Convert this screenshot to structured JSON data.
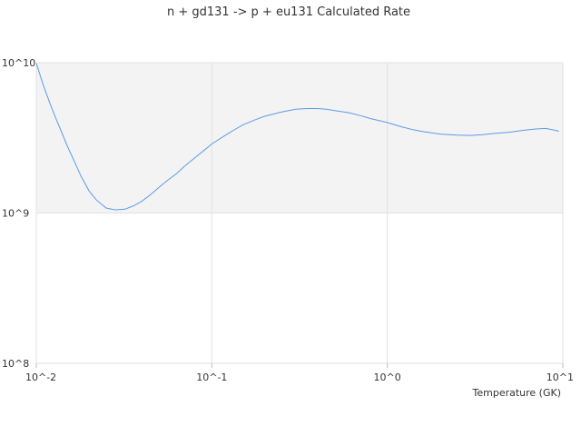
{
  "chart_data": {
    "type": "line",
    "title": "n + gd131 -> p + eu131 Calculated Rate",
    "xlabel": "Temperature (GK)",
    "ylabel": "",
    "x_scale": "log",
    "y_scale": "log",
    "xlim": [
      0.01,
      10
    ],
    "ylim": [
      100000000,
      10000000000
    ],
    "x_ticks": [
      {
        "value": 0.01,
        "label": "10^-2"
      },
      {
        "value": 0.1,
        "label": "10^-1"
      },
      {
        "value": 1,
        "label": "10^0"
      },
      {
        "value": 10,
        "label": "10^1"
      }
    ],
    "y_ticks": [
      {
        "value": 100000000,
        "label": "10^8"
      },
      {
        "value": 1000000000,
        "label": "10^9"
      },
      {
        "value": 10000000000,
        "label": "10^10"
      }
    ],
    "band": {
      "from": 1000000000,
      "to": 10000000000,
      "color": "#f3f3f3"
    },
    "grid": true,
    "legend": "none",
    "series": [
      {
        "color": "#5b9be8",
        "x": [
          0.01,
          0.011,
          0.012,
          0.013,
          0.014,
          0.015,
          0.0165,
          0.018,
          0.02,
          0.022,
          0.025,
          0.028,
          0.032,
          0.036,
          0.04,
          0.045,
          0.05,
          0.056,
          0.063,
          0.07,
          0.08,
          0.09,
          0.1,
          0.115,
          0.13,
          0.15,
          0.175,
          0.2,
          0.25,
          0.3,
          0.35,
          0.4,
          0.45,
          0.5,
          0.6,
          0.7,
          0.8,
          1.0,
          1.2,
          1.4,
          1.6,
          2.0,
          2.5,
          3.0,
          3.5,
          4.0,
          5.0,
          6.0,
          7.0,
          8.0,
          9.0,
          9.5
        ],
        "y": [
          9900000000.0,
          7000000000.0,
          5300000000.0,
          4200000000.0,
          3400000000.0,
          2800000000.0,
          2200000000.0,
          1750000000.0,
          1400000000.0,
          1220000000.0,
          1080000000.0,
          1050000000.0,
          1060000000.0,
          1120000000.0,
          1200000000.0,
          1330000000.0,
          1480000000.0,
          1650000000.0,
          1830000000.0,
          2050000000.0,
          2330000000.0,
          2600000000.0,
          2880000000.0,
          3200000000.0,
          3500000000.0,
          3850000000.0,
          4150000000.0,
          4400000000.0,
          4700000000.0,
          4900000000.0,
          4950000000.0,
          4950000000.0,
          4900000000.0,
          4800000000.0,
          4650000000.0,
          4450000000.0,
          4250000000.0,
          4000000000.0,
          3750000000.0,
          3580000000.0,
          3480000000.0,
          3350000000.0,
          3300000000.0,
          3280000000.0,
          3320000000.0,
          3380000000.0,
          3450000000.0,
          3550000000.0,
          3620000000.0,
          3650000000.0,
          3550000000.0,
          3500000000.0
        ]
      }
    ]
  }
}
